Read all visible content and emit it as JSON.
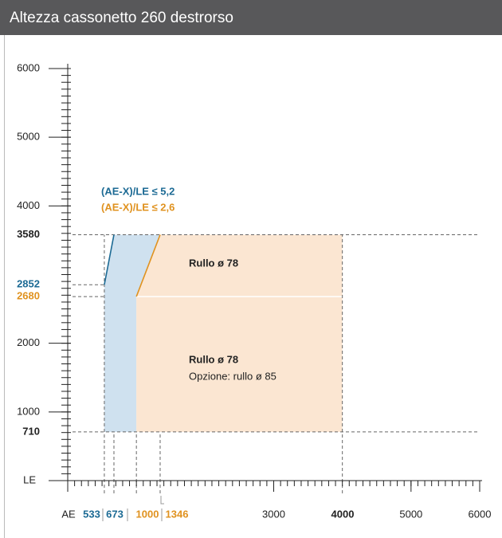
{
  "chart_data": {
    "type": "region",
    "title": "Altezza cassonetto 260 destrorso",
    "xlim": [
      0,
      6000
    ],
    "ylim": [
      0,
      6000
    ],
    "minor_tick_step": 100,
    "xticks": [
      {
        "value": 0,
        "label": "AE"
      },
      3000,
      5000,
      6000
    ],
    "yticks": [
      {
        "value": 0,
        "label": "LE"
      },
      1000,
      2000,
      4000,
      5000,
      6000
    ],
    "x_reference_lines": [
      {
        "value": 533,
        "color": "#1c6a94",
        "to": 3580
      },
      {
        "value": 673,
        "color": "#1c6a94",
        "to": 710
      },
      {
        "value": 1000,
        "color": "#e0921f",
        "to": 710
      },
      {
        "value": 1346,
        "color": "#e0921f",
        "to": 710
      },
      {
        "value": 4000,
        "color": "#222222",
        "to": 3580
      }
    ],
    "y_reference_lines": [
      {
        "value": 3580,
        "color": "#222222",
        "to": 6000
      },
      {
        "value": 2852,
        "color": "#1c6a94",
        "to": 533
      },
      {
        "value": 2680,
        "color": "#e0921f",
        "to": 533
      },
      {
        "value": 710,
        "color": "#222222",
        "to": 6000
      }
    ],
    "regions": [
      {
        "color": "#cfe1ef",
        "x": [
          533,
          533,
          673,
          1346,
          1000,
          1000
        ],
        "y": [
          710,
          2852,
          3580,
          3580,
          2680,
          710
        ]
      },
      {
        "color": "#fbe6d2",
        "x": [
          1000,
          1000,
          1346,
          4000,
          4000
        ],
        "y": [
          710,
          2680,
          3580,
          3580,
          710
        ]
      }
    ],
    "boundaries": [
      {
        "name": "(AE-X)/LE ≤ 5,2",
        "color": "#1c6a94",
        "x": [
          533,
          673
        ],
        "y": [
          2852,
          3580
        ]
      },
      {
        "name": "(AE-X)/LE ≤ 2,6",
        "color": "#e0921f",
        "x": [
          1000,
          1346
        ],
        "y": [
          2680,
          3580
        ]
      }
    ],
    "annotations": [
      {
        "text": "Rullo ø 78",
        "bold": true
      },
      {
        "text": "Rullo ø 78",
        "bold": true
      },
      {
        "text": "Opzione: rullo ø 85",
        "bold": false
      }
    ]
  }
}
